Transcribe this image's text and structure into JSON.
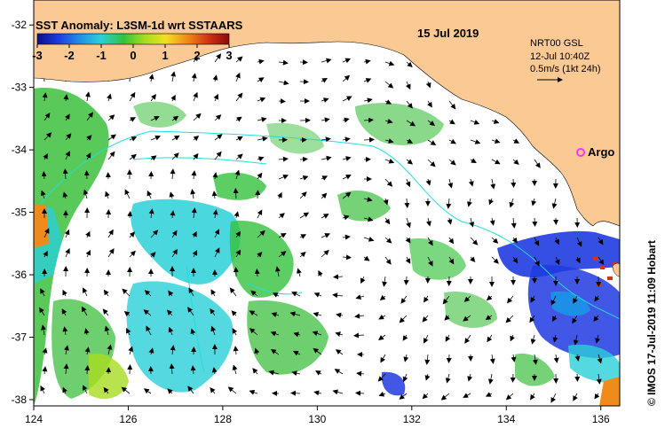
{
  "map": {
    "title": "SST Anomaly: L3SM-1d wrt SSTAARS",
    "date": "15 Jul 2019",
    "colorbar": {
      "ticks": [
        "-3",
        "-2",
        "-1",
        "0",
        "1",
        "2",
        "3"
      ],
      "min": -3,
      "max": 3,
      "colors": [
        "#0a0f8a",
        "#1f3be0",
        "#1e8fe6",
        "#2ad0d8",
        "#34c23c",
        "#a8dc20",
        "#f2e020",
        "#f08a1a",
        "#d23414",
        "#8a0a0a"
      ]
    },
    "currents_legend": {
      "line1": "NRT00 GSL",
      "line2": "12-Jul 10:40Z",
      "line3": "0.5m/s (1kt 24h)"
    },
    "argo_label": "Argo",
    "credit": "© IMOS 17-Jul-2019 11:09 Hobart",
    "lon_ticks": [
      "124",
      "126",
      "128",
      "130",
      "132",
      "134",
      "136"
    ],
    "lat_ticks": [
      "-32",
      "-33",
      "-34",
      "-35",
      "-36",
      "-37",
      "-38"
    ],
    "extent": {
      "lon": [
        124,
        136.4
      ],
      "lat": [
        -38.1,
        -31.6
      ]
    },
    "colors": {
      "land": "#fbc993",
      "ocean": "#ffffff",
      "anomaly_green": "#3cbf3c",
      "anomaly_cyan": "#3ad0d0",
      "anomaly_blue": "#1f3be0",
      "argo": "#ff33ff",
      "isobath": "#22dddd"
    }
  }
}
